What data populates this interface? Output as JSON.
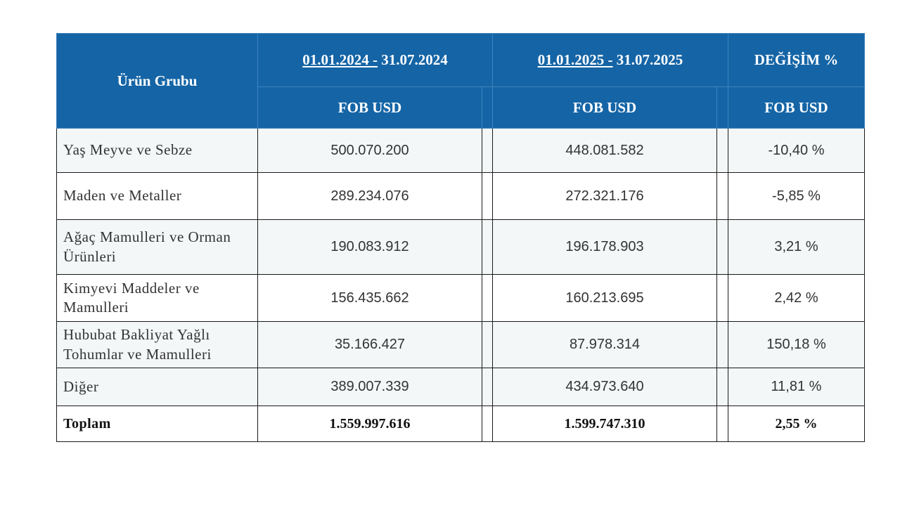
{
  "table": {
    "header": {
      "product_group": "Ürün Grubu",
      "period_1": {
        "start": "01.01.2024 -",
        "end": "31.07.2024"
      },
      "period_2": {
        "start": "01.01.2025 -",
        "end": "31.07.2025"
      },
      "change": "DEĞİŞİM %",
      "unit_1": "FOB USD",
      "unit_2": "FOB USD",
      "unit_3": "FOB USD"
    },
    "rows": [
      [
        "Yaş Meyve ve Sebze",
        "500.070.200",
        "448.081.582",
        "-10,40 %"
      ],
      [
        "Maden ve Metaller",
        "289.234.076",
        "272.321.176",
        "-5,85 %"
      ],
      [
        "Ağaç Mamulleri ve Orman Ürünleri",
        "190.083.912",
        "196.178.903",
        "3,21 %"
      ],
      [
        "Kimyevi Maddeler ve Mamulleri",
        "156.435.662",
        "160.213.695",
        "2,42 %"
      ],
      [
        "Hububat Bakliyat Yağlı Tohumlar ve Mamulleri",
        "35.166.427",
        "87.978.314",
        "150,18 %"
      ],
      [
        "Diğer",
        "389.007.339",
        "434.973.640",
        "11,81 %"
      ]
    ],
    "total": [
      "Toplam",
      "1.559.997.616",
      "1.599.747.310",
      "2,55 %"
    ]
  }
}
